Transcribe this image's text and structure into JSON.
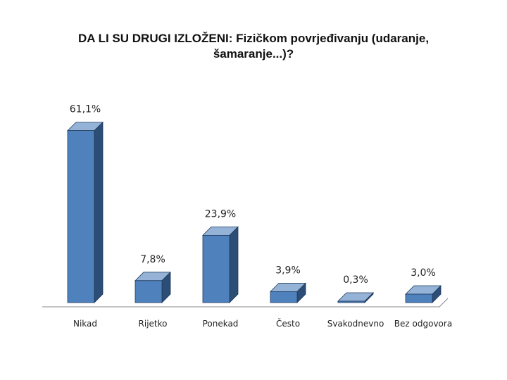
{
  "chart_data": {
    "type": "bar",
    "title_line1": "DA LI SU DRUGI IZLOŽENI: Fizičkom povrjeđivanju (udaranje,",
    "title_line2": "šamaranje...)?",
    "categories": [
      "Nikad",
      "Rijetko",
      "Ponekad",
      "Često",
      "Svakodnevno",
      "Bez odgovora"
    ],
    "values": [
      61.1,
      7.8,
      23.9,
      3.9,
      0.3,
      3.0
    ],
    "data_labels": [
      "61,1%",
      "7,8%",
      "23,9%",
      "3,9%",
      "0,3%",
      "3,0%"
    ],
    "xlabel": "",
    "ylabel": "",
    "ylim": [
      0,
      70
    ],
    "grid": false,
    "legend": "none",
    "colors": {
      "bar_front": "#4f81bd",
      "bar_side": "#2c4d75",
      "bar_top": "#95b3d7",
      "axis": "#888888"
    }
  }
}
